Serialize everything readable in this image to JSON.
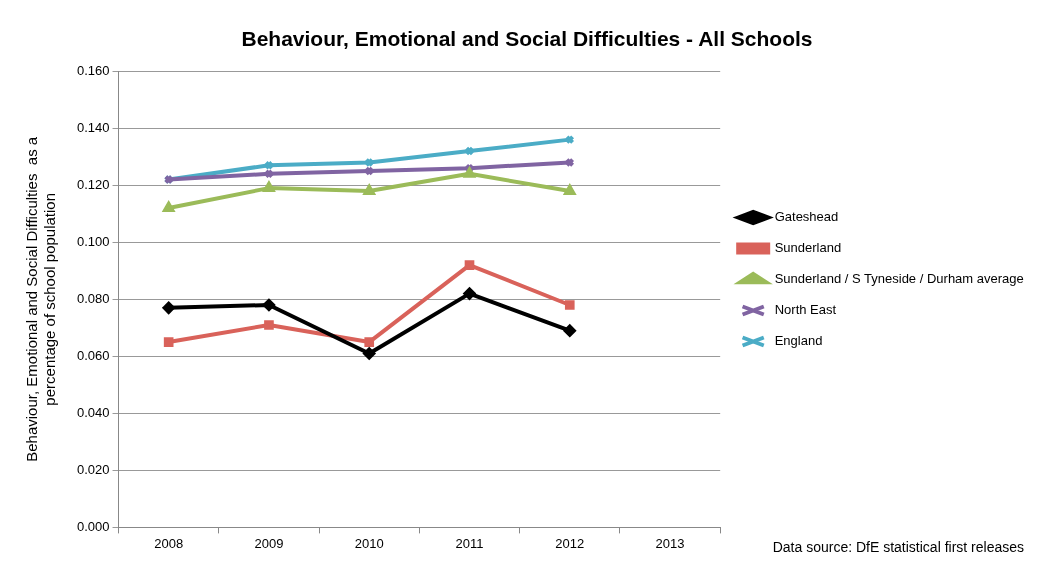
{
  "chart_data": {
    "type": "line",
    "title": "Behaviour, Emotional and Social Difficulties - All Schools",
    "ylabel": "Behaviour, Emotional and Social Difficulties  as a\npercentage of school population",
    "categories": [
      "2008",
      "2009",
      "2010",
      "2011",
      "2012",
      "2013"
    ],
    "series": [
      {
        "name": "Gateshead",
        "color": "#000000",
        "marker": "diamond",
        "values": [
          0.077,
          0.078,
          0.061,
          0.082,
          0.069,
          null
        ]
      },
      {
        "name": "Sunderland",
        "color": "#d9625a",
        "marker": "square",
        "values": [
          0.065,
          0.071,
          0.065,
          0.092,
          0.078,
          null
        ]
      },
      {
        "name": "Sunderland / S Tyneside / Durham average",
        "color": "#9bbb59",
        "marker": "triangle",
        "values": [
          0.112,
          0.119,
          0.118,
          0.124,
          0.118,
          null
        ]
      },
      {
        "name": "North East",
        "color": "#8064a2",
        "marker": "cross",
        "values": [
          0.122,
          0.124,
          0.125,
          0.126,
          0.128,
          null
        ]
      },
      {
        "name": "England",
        "color": "#4bacc6",
        "marker": "cross",
        "values": [
          0.122,
          0.127,
          0.128,
          0.132,
          0.136,
          null
        ]
      }
    ],
    "ylim": [
      0,
      0.16
    ],
    "yticks": [
      {
        "value": 0,
        "label": "0.000"
      },
      {
        "value": 0.02,
        "label": "0.020"
      },
      {
        "value": 0.04,
        "label": "0.040"
      },
      {
        "value": 0.06,
        "label": "0.060"
      },
      {
        "value": 0.08,
        "label": "0.080"
      },
      {
        "value": 0.1,
        "label": "0.100"
      },
      {
        "value": 0.12,
        "label": "0.120"
      },
      {
        "value": 0.14,
        "label": "0.140"
      },
      {
        "value": 0.16,
        "label": "0.160"
      }
    ],
    "grid": "y",
    "legend": "right",
    "line_style": "solid",
    "annotations": [
      "Data source: DfE statistical first releases"
    ]
  }
}
